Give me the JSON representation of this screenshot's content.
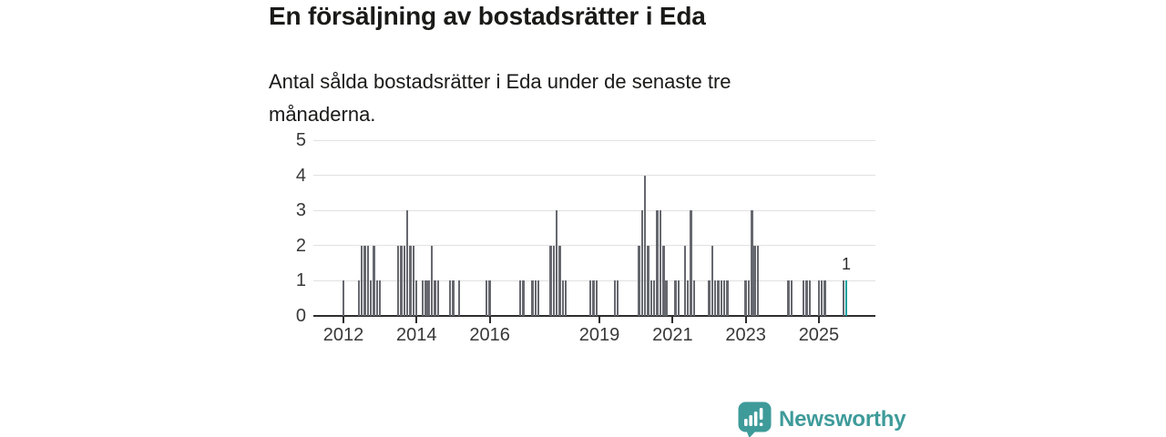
{
  "header": {
    "title": "En försäljning av bostadsrätter i Eda",
    "subtitle": "Antal sålda bostadsrätter i Eda under de senaste tre månaderna."
  },
  "branding": {
    "name": "Newsworthy",
    "logo_icon": "speech-bubble-bar-chart-icon",
    "color": "#3e9b9a"
  },
  "chart_data": {
    "type": "bar",
    "title": "En försäljning av bostadsrätter i Eda",
    "subtitle": "Antal sålda bostadsrätter i Eda under de senaste tre månaderna.",
    "xlabel": "",
    "ylabel": "",
    "grid": true,
    "legend": false,
    "y_axis": {
      "min": 0,
      "max": 5,
      "ticks": [
        "0",
        "1",
        "2",
        "3",
        "4",
        "5"
      ]
    },
    "x_axis": {
      "start_month": "2011-04",
      "end_month": "2025-12",
      "tick_years": [
        "2012",
        "2014",
        "2016",
        "2019",
        "2021",
        "2023",
        "2025"
      ]
    },
    "bar_color": "#66686f",
    "highlight_color": "#0aa1a1",
    "points_format": [
      "month",
      "value"
    ],
    "months_not_listed_are_zero": true,
    "points": [
      [
        "2012-01",
        1
      ],
      [
        "2012-06",
        1
      ],
      [
        "2012-07",
        2
      ],
      [
        "2012-08",
        2
      ],
      [
        "2012-09",
        2
      ],
      [
        "2012-10",
        1
      ],
      [
        "2012-11",
        2
      ],
      [
        "2012-12",
        1
      ],
      [
        "2013-01",
        1
      ],
      [
        "2013-07",
        2
      ],
      [
        "2013-08",
        2
      ],
      [
        "2013-09",
        2
      ],
      [
        "2013-10",
        3
      ],
      [
        "2013-11",
        2
      ],
      [
        "2013-12",
        2
      ],
      [
        "2014-01",
        1
      ],
      [
        "2014-03",
        1
      ],
      [
        "2014-04",
        1
      ],
      [
        "2014-05",
        1
      ],
      [
        "2014-06",
        2
      ],
      [
        "2014-07",
        1
      ],
      [
        "2014-08",
        1
      ],
      [
        "2014-12",
        1
      ],
      [
        "2015-01",
        1
      ],
      [
        "2015-03",
        1
      ],
      [
        "2015-12",
        1
      ],
      [
        "2016-01",
        1
      ],
      [
        "2016-11",
        1
      ],
      [
        "2016-12",
        1
      ],
      [
        "2017-03",
        1
      ],
      [
        "2017-04",
        1
      ],
      [
        "2017-05",
        1
      ],
      [
        "2017-09",
        2
      ],
      [
        "2017-10",
        2
      ],
      [
        "2017-11",
        3
      ],
      [
        "2017-12",
        2
      ],
      [
        "2018-01",
        1
      ],
      [
        "2018-02",
        1
      ],
      [
        "2018-10",
        1
      ],
      [
        "2018-11",
        1
      ],
      [
        "2018-12",
        1
      ],
      [
        "2019-06",
        1
      ],
      [
        "2019-07",
        1
      ],
      [
        "2020-02",
        2
      ],
      [
        "2020-03",
        3
      ],
      [
        "2020-04",
        4
      ],
      [
        "2020-05",
        2
      ],
      [
        "2020-06",
        1
      ],
      [
        "2020-07",
        1
      ],
      [
        "2020-08",
        3
      ],
      [
        "2020-09",
        3
      ],
      [
        "2020-10",
        2
      ],
      [
        "2020-11",
        1
      ],
      [
        "2021-02",
        1
      ],
      [
        "2021-03",
        1
      ],
      [
        "2021-05",
        2
      ],
      [
        "2021-06",
        1
      ],
      [
        "2021-07",
        3
      ],
      [
        "2021-08",
        1
      ],
      [
        "2022-01",
        1
      ],
      [
        "2022-02",
        2
      ],
      [
        "2022-03",
        1
      ],
      [
        "2022-04",
        1
      ],
      [
        "2022-05",
        1
      ],
      [
        "2022-06",
        1
      ],
      [
        "2022-07",
        1
      ],
      [
        "2023-01",
        1
      ],
      [
        "2023-02",
        1
      ],
      [
        "2023-03",
        3
      ],
      [
        "2023-04",
        2
      ],
      [
        "2023-05",
        2
      ],
      [
        "2024-03",
        1
      ],
      [
        "2024-04",
        1
      ],
      [
        "2024-08",
        1
      ],
      [
        "2024-09",
        1
      ],
      [
        "2024-10",
        1
      ],
      [
        "2025-01",
        1
      ],
      [
        "2025-02",
        1
      ],
      [
        "2025-03",
        1
      ],
      [
        "2025-09",
        1
      ],
      [
        "2025-10",
        1
      ]
    ],
    "highlight_point": {
      "month": "2025-10",
      "value": 1
    },
    "annotation": {
      "text": "1",
      "month": "2025-10"
    }
  }
}
